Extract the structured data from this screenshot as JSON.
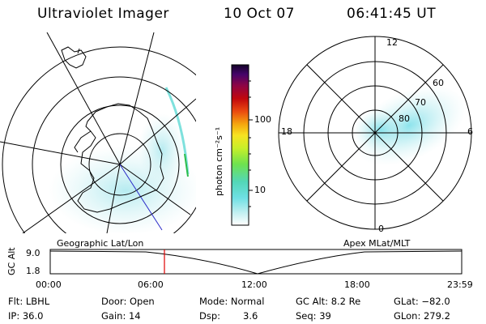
{
  "header": {
    "instrument": "Ultraviolet Imager",
    "date": "10 Oct 07",
    "time": "06:41:45 UT"
  },
  "geographic_panel": {
    "caption": "Geographic Lat/Lon"
  },
  "apex_panel": {
    "caption": "Apex MLat/MLT",
    "mlt_labels": [
      "12",
      "18",
      "6",
      "0"
    ],
    "mlat_labels": [
      "60",
      "70",
      "80"
    ]
  },
  "colorbar": {
    "unit_label": "photon cm⁻²s⁻¹",
    "ticks": [
      "100",
      "10"
    ],
    "scale": "log"
  },
  "altitude_plot": {
    "ylabel": "GC Alt",
    "ytick_top": "9.0",
    "ytick_bottom": "1.8",
    "xticks": [
      "00:00",
      "06:00",
      "12:00",
      "18:00",
      "23:59"
    ],
    "current_time_marker": "06:41:45"
  },
  "info": {
    "filter": "Flt: LBHL",
    "door": "Door: Open",
    "mode": "Mode: Normal",
    "gc_alt": "GC Alt: 8.2 Re",
    "glat": "GLat: −82.0",
    "ip": "IP: 36.0",
    "gain": "Gain: 14",
    "dsp_label": "Dsp:",
    "dsp_value": "3.6",
    "seq": "Seq: 39",
    "glon": "GLon: 279.2"
  },
  "colors": {
    "marker_red": "#e00000",
    "aurora_cyan": "#8fe3ea",
    "background": "#ffffff"
  }
}
